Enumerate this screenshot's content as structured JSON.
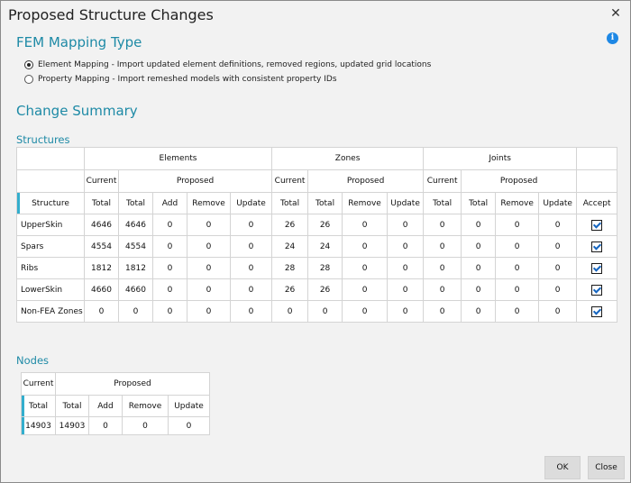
{
  "dialog": {
    "title": "Proposed Structure Changes",
    "close_glyph": "✕"
  },
  "mapping": {
    "heading": "FEM Mapping Type",
    "options": [
      {
        "label": "Element Mapping - Import updated element definitions, removed regions, updated grid locations",
        "selected": true
      },
      {
        "label": "Property Mapping - Import remeshed models with consistent property IDs",
        "selected": false
      }
    ]
  },
  "summary": {
    "heading": "Change Summary"
  },
  "structures": {
    "heading": "Structures",
    "groups": {
      "elements": "Elements",
      "zones": "Zones",
      "joints": "Joints"
    },
    "sub": {
      "current": "Current",
      "proposed": "Proposed"
    },
    "columns": [
      "Structure",
      "Total",
      "Total",
      "Add",
      "Remove",
      "Update",
      "Total",
      "Total",
      "Remove",
      "Update",
      "Total",
      "Total",
      "Remove",
      "Update",
      "Accept"
    ],
    "rows": [
      {
        "name": "UpperSkin",
        "cells": [
          "4646",
          "4646",
          "0",
          "0",
          "0",
          "26",
          "26",
          "0",
          "0",
          "0",
          "0",
          "0",
          "0"
        ],
        "accept": true
      },
      {
        "name": "Spars",
        "cells": [
          "4554",
          "4554",
          "0",
          "0",
          "0",
          "24",
          "24",
          "0",
          "0",
          "0",
          "0",
          "0",
          "0"
        ],
        "accept": true
      },
      {
        "name": "Ribs",
        "cells": [
          "1812",
          "1812",
          "0",
          "0",
          "0",
          "28",
          "28",
          "0",
          "0",
          "0",
          "0",
          "0",
          "0"
        ],
        "accept": true
      },
      {
        "name": "LowerSkin",
        "cells": [
          "4660",
          "4660",
          "0",
          "0",
          "0",
          "26",
          "26",
          "0",
          "0",
          "0",
          "0",
          "0",
          "0"
        ],
        "accept": true
      },
      {
        "name": "Non-FEA Zones",
        "cells": [
          "0",
          "0",
          "0",
          "0",
          "0",
          "0",
          "0",
          "0",
          "0",
          "0",
          "0",
          "0",
          "0"
        ],
        "accept": true
      }
    ]
  },
  "nodes": {
    "heading": "Nodes",
    "sub": {
      "current": "Current",
      "proposed": "Proposed"
    },
    "columns": [
      "Total",
      "Total",
      "Add",
      "Remove",
      "Update"
    ],
    "row": [
      "14903",
      "14903",
      "0",
      "0",
      "0"
    ]
  },
  "buttons": {
    "ok": "OK",
    "close": "Close"
  },
  "colors": {
    "accent": "#1e8aa6",
    "row_marker": "#33aecd",
    "info": "#1e88e5"
  },
  "icons": {
    "info": "info-icon",
    "close": "close-icon",
    "checkbox": "checkbox-checked"
  }
}
